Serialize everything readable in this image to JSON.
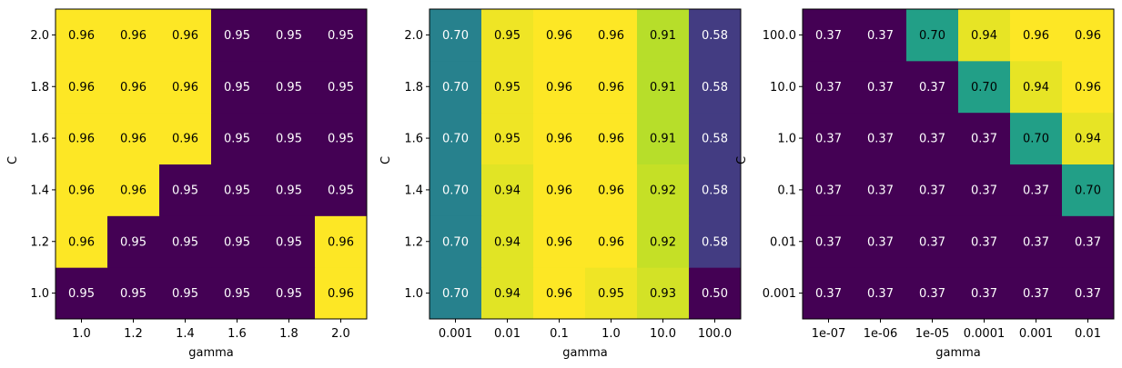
{
  "chart_data": [
    {
      "type": "heatmap",
      "xlabel": "gamma",
      "ylabel": "C",
      "x_ticks": [
        "1.0",
        "1.2",
        "1.4",
        "1.6",
        "1.8",
        "2.0"
      ],
      "y_ticks": [
        "1.0",
        "1.2",
        "1.4",
        "1.6",
        "1.8",
        "2.0"
      ],
      "y_order": "bottom-to-top",
      "values": [
        [
          "0.95",
          "0.95",
          "0.95",
          "0.95",
          "0.95",
          "0.96"
        ],
        [
          "0.96",
          "0.95",
          "0.95",
          "0.95",
          "0.95",
          "0.96"
        ],
        [
          "0.96",
          "0.96",
          "0.95",
          "0.95",
          "0.95",
          "0.95"
        ],
        [
          "0.96",
          "0.96",
          "0.96",
          "0.95",
          "0.95",
          "0.95"
        ],
        [
          "0.96",
          "0.96",
          "0.96",
          "0.95",
          "0.95",
          "0.95"
        ],
        [
          "0.96",
          "0.96",
          "0.96",
          "0.95",
          "0.95",
          "0.95"
        ]
      ],
      "colormap": "viridis"
    },
    {
      "type": "heatmap",
      "xlabel": "gamma",
      "ylabel": "C",
      "x_ticks": [
        "0.001",
        "0.01",
        "0.1",
        "1.0",
        "10.0",
        "100.0"
      ],
      "y_ticks": [
        "1.0",
        "1.2",
        "1.4",
        "1.6",
        "1.8",
        "2.0"
      ],
      "y_order": "bottom-to-top",
      "values": [
        [
          "0.70",
          "0.94",
          "0.96",
          "0.95",
          "0.93",
          "0.50"
        ],
        [
          "0.70",
          "0.94",
          "0.96",
          "0.96",
          "0.92",
          "0.58"
        ],
        [
          "0.70",
          "0.94",
          "0.96",
          "0.96",
          "0.92",
          "0.58"
        ],
        [
          "0.70",
          "0.95",
          "0.96",
          "0.96",
          "0.91",
          "0.58"
        ],
        [
          "0.70",
          "0.95",
          "0.96",
          "0.96",
          "0.91",
          "0.58"
        ],
        [
          "0.70",
          "0.95",
          "0.96",
          "0.96",
          "0.91",
          "0.58"
        ]
      ],
      "colormap": "viridis"
    },
    {
      "type": "heatmap",
      "xlabel": "gamma",
      "ylabel": "C",
      "x_ticks": [
        "1e-07",
        "1e-06",
        "1e-05",
        "0.0001",
        "0.001",
        "0.01"
      ],
      "y_ticks": [
        "0.001",
        "0.01",
        "0.1",
        "1.0",
        "10.0",
        "100.0"
      ],
      "y_order": "bottom-to-top",
      "values": [
        [
          "0.37",
          "0.37",
          "0.37",
          "0.37",
          "0.37",
          "0.37"
        ],
        [
          "0.37",
          "0.37",
          "0.37",
          "0.37",
          "0.37",
          "0.37"
        ],
        [
          "0.37",
          "0.37",
          "0.37",
          "0.37",
          "0.37",
          "0.70"
        ],
        [
          "0.37",
          "0.37",
          "0.37",
          "0.37",
          "0.70",
          "0.94"
        ],
        [
          "0.37",
          "0.37",
          "0.37",
          "0.70",
          "0.94",
          "0.96"
        ],
        [
          "0.37",
          "0.37",
          "0.70",
          "0.94",
          "0.96",
          "0.96"
        ]
      ],
      "colormap": "viridis"
    }
  ]
}
